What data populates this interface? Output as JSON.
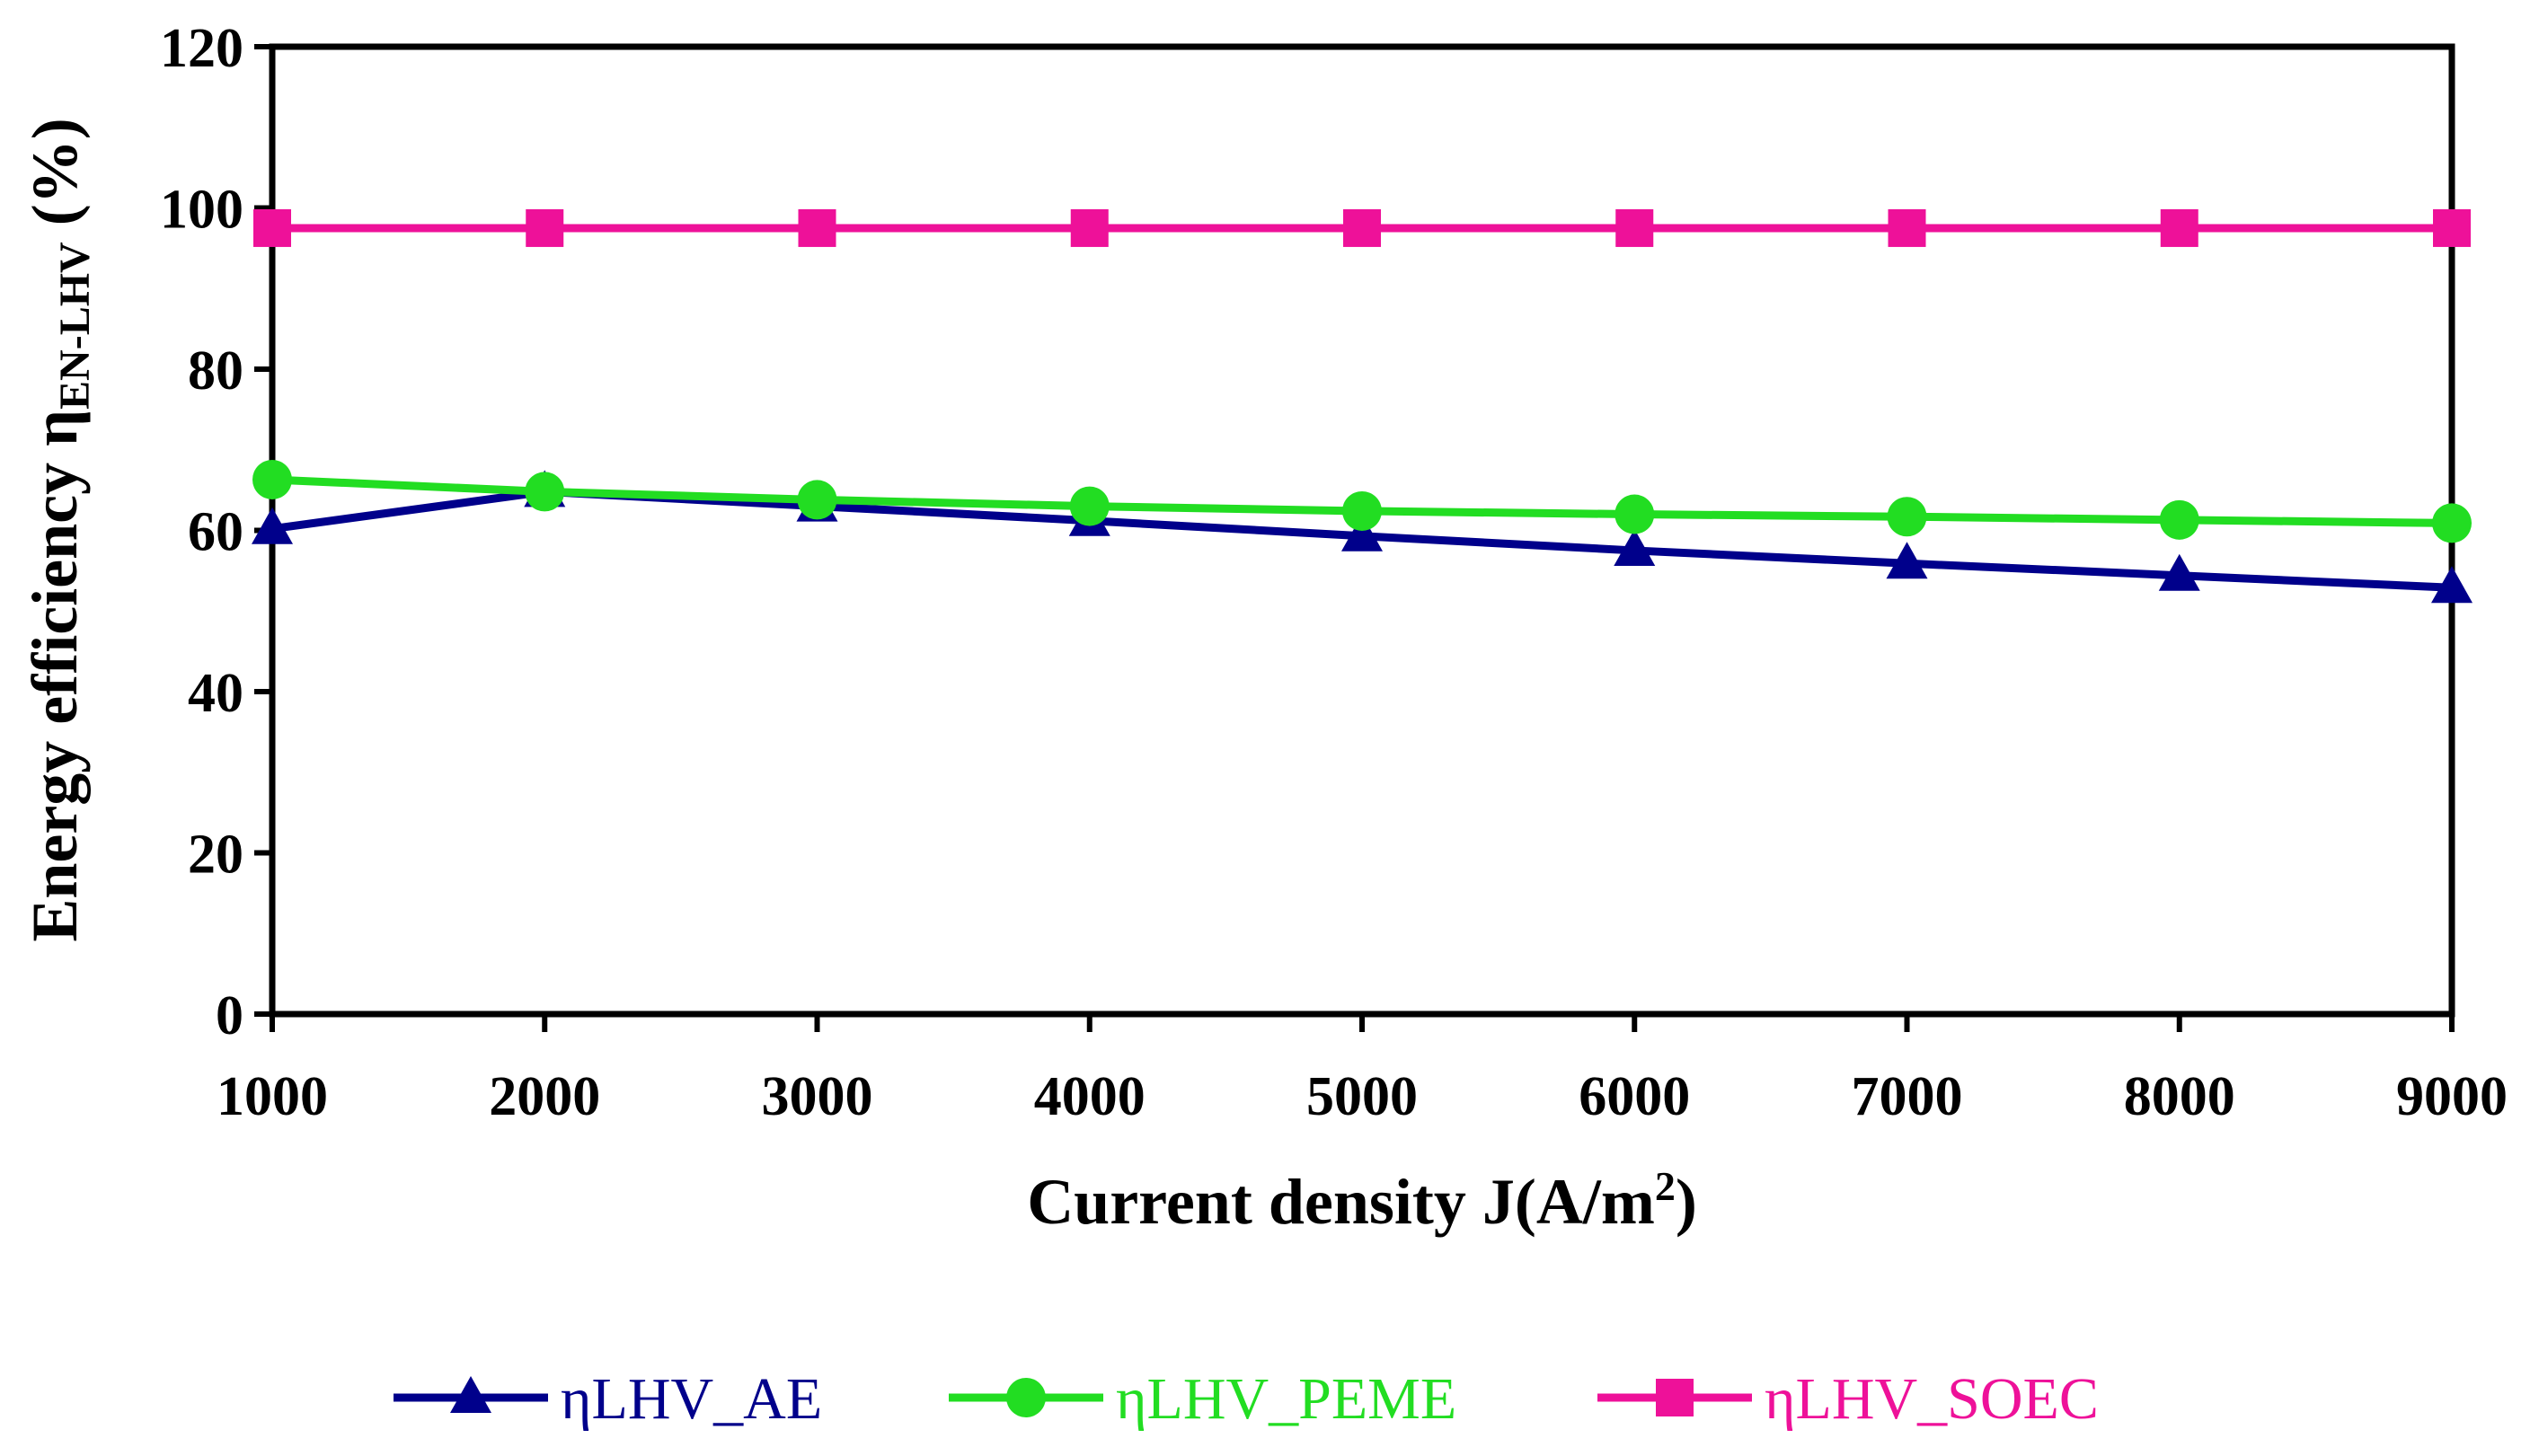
{
  "chart_data": {
    "type": "line",
    "title": "",
    "xlabel": "Current density J(A/m",
    "xlabel_sup": "2",
    "xlabel_end": ")",
    "ylabel_main": "Energy efficiency η",
    "ylabel_sub": "EN-LHV",
    "ylabel_end": " (%)",
    "x": [
      1000,
      2000,
      3000,
      4000,
      5000,
      6000,
      7000,
      8000,
      9000
    ],
    "xlim": [
      1000,
      9000
    ],
    "ylim": [
      0,
      120
    ],
    "yticks": [
      0,
      20,
      40,
      60,
      80,
      100,
      120
    ],
    "grid": false,
    "legend_position": "bottom",
    "series": [
      {
        "name": "ηLHV_AE",
        "color": "#00008B",
        "marker": "triangle",
        "values": [
          60.2,
          64.8,
          63.0,
          61.2,
          59.3,
          57.5,
          55.9,
          54.4,
          52.9
        ]
      },
      {
        "name": "ηLHV_PEME",
        "color": "#22DD22",
        "marker": "circle",
        "values": [
          66.3,
          64.8,
          63.8,
          63.0,
          62.4,
          62.0,
          61.7,
          61.3,
          60.9
        ]
      },
      {
        "name": "ηLHV_SOEC",
        "color": "#EE1199",
        "marker": "square",
        "values": [
          97.5,
          97.5,
          97.5,
          97.5,
          97.5,
          97.5,
          97.5,
          97.5,
          97.5
        ]
      }
    ]
  }
}
